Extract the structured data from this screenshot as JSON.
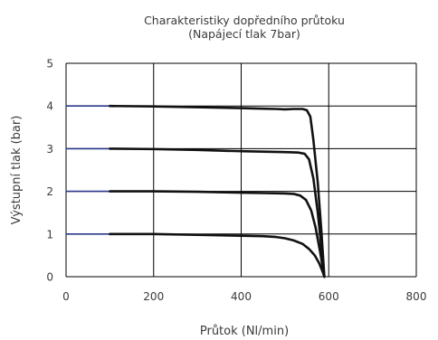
{
  "chart_data": {
    "type": "line",
    "title": [
      "Charakteristiky dopředního průtoku",
      "(Napájecí tlak 7bar)"
    ],
    "xlabel": "Průtok (Nl/min)",
    "ylabel": "Výstupní tlak (bar)",
    "xlim": [
      0,
      800
    ],
    "ylim": [
      0,
      5
    ],
    "xticks": [
      "0",
      "200",
      "400",
      "600",
      "800"
    ],
    "yticks": [
      "0",
      "1",
      "2",
      "3",
      "4",
      "5"
    ],
    "grid": true,
    "legend": "none",
    "colors": {
      "curve": "#111111",
      "lead": "#2b3a8c",
      "grid": "#000000"
    },
    "series": [
      {
        "points": [
          [
            0,
            4.0
          ],
          [
            100,
            4.0
          ],
          [
            200,
            3.99
          ],
          [
            300,
            3.97
          ],
          [
            400,
            3.95
          ],
          [
            440,
            3.94
          ],
          [
            480,
            3.93
          ],
          [
            500,
            3.92
          ],
          [
            520,
            3.93
          ],
          [
            540,
            3.93
          ],
          [
            550,
            3.9
          ],
          [
            558,
            3.75
          ],
          [
            565,
            3.2
          ],
          [
            575,
            2.2
          ],
          [
            583,
            1.1
          ],
          [
            590,
            0.0
          ]
        ]
      },
      {
        "points": [
          [
            0,
            3.0
          ],
          [
            100,
            3.0
          ],
          [
            200,
            2.99
          ],
          [
            300,
            2.97
          ],
          [
            400,
            2.94
          ],
          [
            450,
            2.93
          ],
          [
            500,
            2.92
          ],
          [
            530,
            2.91
          ],
          [
            545,
            2.88
          ],
          [
            555,
            2.75
          ],
          [
            565,
            2.3
          ],
          [
            575,
            1.5
          ],
          [
            583,
            0.7
          ],
          [
            590,
            0.0
          ]
        ]
      },
      {
        "points": [
          [
            0,
            2.0
          ],
          [
            100,
            2.0
          ],
          [
            200,
            2.0
          ],
          [
            300,
            1.99
          ],
          [
            400,
            1.97
          ],
          [
            450,
            1.96
          ],
          [
            500,
            1.95
          ],
          [
            520,
            1.94
          ],
          [
            535,
            1.9
          ],
          [
            548,
            1.8
          ],
          [
            560,
            1.55
          ],
          [
            570,
            1.15
          ],
          [
            580,
            0.6
          ],
          [
            590,
            0.0
          ]
        ]
      },
      {
        "points": [
          [
            0,
            1.0
          ],
          [
            100,
            1.0
          ],
          [
            200,
            1.0
          ],
          [
            300,
            0.98
          ],
          [
            400,
            0.96
          ],
          [
            450,
            0.95
          ],
          [
            480,
            0.93
          ],
          [
            500,
            0.9
          ],
          [
            520,
            0.85
          ],
          [
            540,
            0.77
          ],
          [
            555,
            0.65
          ],
          [
            568,
            0.5
          ],
          [
            578,
            0.32
          ],
          [
            586,
            0.12
          ],
          [
            590,
            0.0
          ]
        ]
      }
    ]
  }
}
